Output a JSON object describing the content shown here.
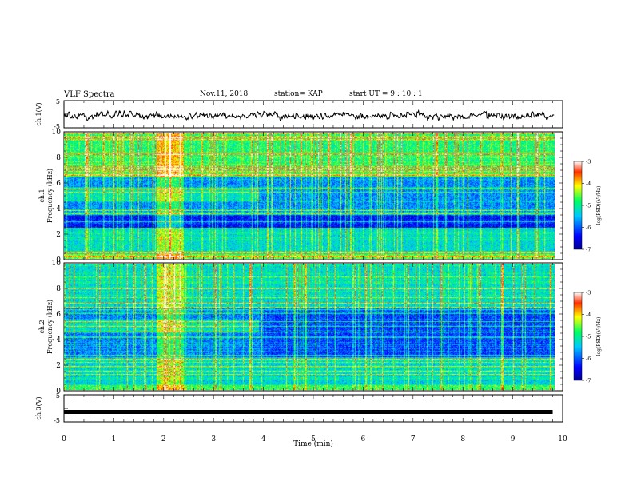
{
  "header": {
    "title": "VLF Spectra",
    "date": "Nov.11, 2018",
    "station": "station= KAP",
    "start": "start UT = 9 : 10 : 1"
  },
  "chart_data": [
    {
      "type": "line",
      "panel": "ch1-waveform",
      "ylabel": "ch.1(V)",
      "ylim": [
        -5,
        5
      ],
      "y_ticks": [
        "5",
        "-5"
      ],
      "xlim": [
        0,
        10
      ],
      "series": [
        {
          "values": [
            -0.5,
            -1.0,
            0.5,
            -1.8,
            -1.2,
            -0.6,
            -1.8,
            -0.2,
            -0.6,
            -0.4,
            -0.9,
            -2.0,
            -1.5,
            -1.0,
            -1.2,
            -0.4,
            0.2,
            -0.4,
            0.9,
            -0.3,
            -0.7,
            0.6,
            -0.9,
            -1.6,
            -0.9,
            1.2,
            -0.5,
            0.9,
            -0.5,
            0.7,
            -0.4,
            -0.4,
            0.6,
            -0.5,
            -0.2,
            0.3,
            -0.2,
            -1.1,
            -1.2,
            -1.2,
            -1.3,
            -1.2,
            -0.2,
            0.1,
            -0.8,
            0.6,
            -0.5,
            -0.8,
            -2.0,
            -1.3,
            -0.8,
            -1.1,
            -0.7,
            -1.3,
            -0.9,
            -1.1,
            -1.6,
            -0.8,
            -1.3,
            -1.8,
            -1.6,
            0.0,
            -1.6,
            -0.4,
            0.3,
            -1.1,
            -0.2,
            -0.8,
            -0.4,
            -0.6,
            -0.7,
            0.7,
            -1.6,
            -0.3,
            -0.5,
            -0.8,
            0.3,
            -0.2,
            -0.1,
            -1.1,
            -0.1,
            -1.2,
            -0.7,
            -0.7,
            -0.6,
            -1.3,
            -1.8,
            -0.6,
            -1.1,
            -1.6,
            -0.8,
            -0.3,
            -0.4,
            -0.7,
            0.4,
            -0.4,
            -0.8,
            0.5,
            0.3,
            -0.7,
            0.0,
            -0.3,
            0.4,
            0.4,
            -0.7,
            -1.9,
            -1.0,
            -1.1,
            -1.0,
            -0.5,
            -1.3,
            -0.3,
            -1.9,
            -0.3,
            -0.6,
            -1.4,
            -0.6,
            -1.8,
            -0.6,
            -1.3,
            -0.9,
            -1.8,
            -1.3,
            -0.7,
            -1.3,
            -0.6,
            -1.4,
            -0.3,
            -0.5,
            -0.9,
            -0.6,
            0.3,
            -0.2,
            0.2,
            -0.4,
            -0.8,
            0.4,
            0.2,
            0.2,
            0.1,
            0.2,
            -0.5,
            -1.2,
            -1.3,
            -0.3,
            -0.8,
            -1.1,
            -0.9,
            -1.6,
            -0.9,
            -1.0,
            -0.9,
            -1.3,
            -0.6,
            -1.1,
            -0.7,
            -0.7,
            -1.3,
            -1.1,
            0.3,
            -0.5,
            -0.4,
            -0.9,
            -1.3,
            -0.2,
            -0.7,
            -1.0,
            0.7,
            0.4,
            0.3,
            0.0,
            -0.7,
            1.5,
            0.1,
            0.3,
            -0.2,
            -0.8,
            -1.9,
            -0.9,
            -1.6,
            -0.9,
            -0.4,
            -1.7,
            -0.9,
            -1.0,
            -1.0,
            -1.1,
            -0.4,
            -0.4,
            -1.8,
            -1.5,
            -1.2,
            -0.5,
            -1.3,
            -1.3,
            -1.9,
            -1.3,
            -0.9,
            -0.3,
            -0.1,
            -0.2,
            -0.6,
            -0.1,
            -0.5,
            0.4,
            0.8,
            -0.9,
            -0.2,
            -0.2,
            -0.3,
            -0.8,
            -0.2,
            -0.8,
            -0.9,
            -1.8,
            -0.5,
            -0.5,
            -1.1,
            -0.5,
            -0.8,
            -1.6,
            -1.3,
            -1.6,
            -1.0,
            -0.7,
            -0.6,
            -0.6,
            -0.8,
            0.5,
            -0.7,
            -0.2,
            0.0,
            -0.6,
            0.1,
            -0.6,
            -1.5,
            -0.6,
            -0.7,
            -0.7
          ]
        }
      ]
    },
    {
      "type": "heatmap",
      "panel": "ch1-spectrogram",
      "ylabel": "ch.1 Frequency (kHz)",
      "ylim": [
        0,
        10
      ],
      "y_ticks": [
        "0",
        "2",
        "4",
        "6",
        "8",
        "10"
      ],
      "xlim": [
        0,
        10
      ],
      "colorbar": {
        "label": "log(PSD)(V²/Hz)",
        "range": [
          -7,
          -3
        ],
        "ticks": [
          "-3",
          "-4",
          "-5",
          "-6",
          "-7"
        ]
      }
    },
    {
      "type": "heatmap",
      "panel": "ch2-spectrogram",
      "ylabel": "ch.2 Frequency (kHz)",
      "ylim": [
        0,
        10
      ],
      "y_ticks": [
        "0",
        "2",
        "4",
        "6",
        "8",
        "10"
      ],
      "xlim": [
        0,
        10
      ],
      "colorbar": {
        "label": "log(PSD)(V²/Hz)",
        "range": [
          -7,
          -3
        ],
        "ticks": [
          "-3",
          "-4",
          "-5",
          "-6",
          "-7"
        ]
      }
    },
    {
      "type": "line",
      "panel": "ch3-waveform",
      "ylabel": "ch.3(V)",
      "ylim": [
        -5,
        5
      ],
      "y_ticks": [
        "5",
        "-5"
      ],
      "xlim": [
        0,
        10
      ],
      "series": [
        {
          "x": [
            0,
            9.8
          ],
          "values": [
            -1.5,
            -1.5
          ]
        }
      ]
    }
  ],
  "x_axis": {
    "label": "Time (min)",
    "ticks": [
      "0",
      "1",
      "2",
      "3",
      "4",
      "5",
      "6",
      "7",
      "8",
      "9",
      "10"
    ]
  }
}
